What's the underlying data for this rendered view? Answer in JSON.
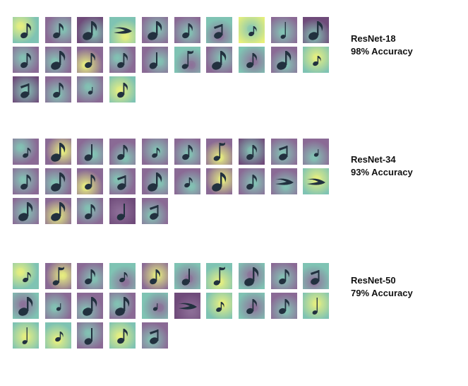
{
  "colors": {
    "purple": "#8a6a95",
    "deep_purple": "#6f4b7a",
    "teal": "#7fc3b3",
    "yellow": "#e8f07a",
    "note": "#22313f"
  },
  "groups": [
    {
      "id": "resnet-18",
      "name": "ResNet-18",
      "accuracy": "98% Accuracy",
      "tiles": [
        {
          "bg": "teal",
          "hot": "yellow",
          "note": "eighth"
        },
        {
          "bg": "purple",
          "hot": "teal",
          "note": "eighth"
        },
        {
          "bg": "deep_purple",
          "hot": "teal",
          "note": "eighth-big"
        },
        {
          "bg": "teal",
          "hot": "yellow",
          "note": "beam"
        },
        {
          "bg": "purple",
          "hot": "teal",
          "note": "eighth-big"
        },
        {
          "bg": "purple",
          "hot": "teal",
          "note": "eighth"
        },
        {
          "bg": "teal",
          "hot": "purple",
          "note": "sixteenth"
        },
        {
          "bg": "yellow",
          "hot": "teal",
          "note": "sixteenth-small"
        },
        {
          "bg": "purple",
          "hot": "teal",
          "note": "quarter-thin"
        },
        {
          "bg": "deep_purple",
          "hot": "teal",
          "note": "eighth-big"
        },
        {
          "bg": "purple",
          "hot": "teal",
          "note": "eighth"
        },
        {
          "bg": "purple",
          "hot": "teal",
          "note": "eighth-big"
        },
        {
          "bg": "purple",
          "hot": "yellow",
          "note": "eighth"
        },
        {
          "bg": "purple",
          "hot": "teal",
          "note": "eighth"
        },
        {
          "bg": "purple",
          "hot": "teal",
          "note": "quarter"
        },
        {
          "bg": "teal",
          "hot": "purple",
          "note": "flag"
        },
        {
          "bg": "purple",
          "hot": "teal",
          "note": "eighth-big"
        },
        {
          "bg": "teal",
          "hot": "purple",
          "note": "eighth"
        },
        {
          "bg": "purple",
          "hot": "teal",
          "note": "eighth-big"
        },
        {
          "bg": "teal",
          "hot": "yellow",
          "note": "sixteenth-small"
        },
        {
          "bg": "deep_purple",
          "hot": "teal",
          "note": "sixteenth"
        },
        {
          "bg": "purple",
          "hot": "teal",
          "note": "eighth"
        },
        {
          "bg": "purple",
          "hot": "teal",
          "note": "dot"
        },
        {
          "bg": "teal",
          "hot": "yellow",
          "note": "eighth"
        }
      ]
    },
    {
      "id": "resnet-34",
      "name": "ResNet-34",
      "accuracy": "93% Accuracy",
      "tiles": [
        {
          "bg": "purple",
          "hot": "teal",
          "note": "sixteenth-small"
        },
        {
          "bg": "purple",
          "hot": "yellow",
          "note": "eighth-big"
        },
        {
          "bg": "purple",
          "hot": "teal",
          "note": "quarter"
        },
        {
          "bg": "purple",
          "hot": "teal",
          "note": "eighth"
        },
        {
          "bg": "purple",
          "hot": "teal",
          "note": "sixteenth-small"
        },
        {
          "bg": "purple",
          "hot": "teal",
          "note": "eighth"
        },
        {
          "bg": "purple",
          "hot": "yellow",
          "note": "flag"
        },
        {
          "bg": "deep_purple",
          "hot": "teal",
          "note": "eighth"
        },
        {
          "bg": "purple",
          "hot": "teal",
          "note": "sixteenth"
        },
        {
          "bg": "purple",
          "hot": "teal",
          "note": "dot"
        },
        {
          "bg": "purple",
          "hot": "teal",
          "note": "eighth"
        },
        {
          "bg": "purple",
          "hot": "teal",
          "note": "eighth-big"
        },
        {
          "bg": "purple",
          "hot": "yellow",
          "note": "eighth"
        },
        {
          "bg": "purple",
          "hot": "teal",
          "note": "sixteenth"
        },
        {
          "bg": "purple",
          "hot": "teal",
          "note": "eighth-big"
        },
        {
          "bg": "purple",
          "hot": "teal",
          "note": "sixteenth-small"
        },
        {
          "bg": "purple",
          "hot": "yellow",
          "note": "eighth-big"
        },
        {
          "bg": "purple",
          "hot": "teal",
          "note": "eighth"
        },
        {
          "bg": "purple",
          "hot": "teal",
          "note": "beam"
        },
        {
          "bg": "teal",
          "hot": "yellow",
          "note": "beam"
        },
        {
          "bg": "purple",
          "hot": "teal",
          "note": "eighth-big"
        },
        {
          "bg": "purple",
          "hot": "yellow",
          "note": "eighth-big"
        },
        {
          "bg": "purple",
          "hot": "teal",
          "note": "eighth"
        },
        {
          "bg": "deep_purple",
          "hot": "purple",
          "note": "quarter"
        },
        {
          "bg": "purple",
          "hot": "teal",
          "note": "sixteenth"
        }
      ]
    },
    {
      "id": "resnet-50",
      "name": "ResNet-50",
      "accuracy": "79% Accuracy",
      "tiles": [
        {
          "bg": "teal",
          "hot": "yellow",
          "note": "sixteenth-small"
        },
        {
          "bg": "purple",
          "hot": "yellow",
          "note": "flag"
        },
        {
          "bg": "purple",
          "hot": "teal",
          "note": "eighth"
        },
        {
          "bg": "teal",
          "hot": "purple",
          "note": "sixteenth-small"
        },
        {
          "bg": "purple",
          "hot": "yellow",
          "note": "eighth"
        },
        {
          "bg": "teal",
          "hot": "purple",
          "note": "quarter"
        },
        {
          "bg": "teal",
          "hot": "yellow",
          "note": "flag"
        },
        {
          "bg": "teal",
          "hot": "purple",
          "note": "eighth-big"
        },
        {
          "bg": "purple",
          "hot": "teal",
          "note": "eighth"
        },
        {
          "bg": "teal",
          "hot": "purple",
          "note": "sixteenth"
        },
        {
          "bg": "teal",
          "hot": "purple",
          "note": "eighth-big"
        },
        {
          "bg": "purple",
          "hot": "teal",
          "note": "dot"
        },
        {
          "bg": "purple",
          "hot": "teal",
          "note": "eighth-big"
        },
        {
          "bg": "purple",
          "hot": "teal",
          "note": "eighth-big"
        },
        {
          "bg": "teal",
          "hot": "purple",
          "note": "dot"
        },
        {
          "bg": "deep_purple",
          "hot": "purple",
          "note": "beam"
        },
        {
          "bg": "teal",
          "hot": "yellow",
          "note": "sixteenth-small"
        },
        {
          "bg": "teal",
          "hot": "purple",
          "note": "eighth"
        },
        {
          "bg": "purple",
          "hot": "teal",
          "note": "eighth"
        },
        {
          "bg": "teal",
          "hot": "yellow",
          "note": "quarter-thin"
        },
        {
          "bg": "teal",
          "hot": "yellow",
          "note": "quarter-thin"
        },
        {
          "bg": "teal",
          "hot": "yellow",
          "note": "sixteenth-small"
        },
        {
          "bg": "purple",
          "hot": "teal",
          "note": "quarter"
        },
        {
          "bg": "teal",
          "hot": "yellow",
          "note": "eighth"
        },
        {
          "bg": "purple",
          "hot": "teal",
          "note": "sixteenth"
        }
      ]
    }
  ]
}
